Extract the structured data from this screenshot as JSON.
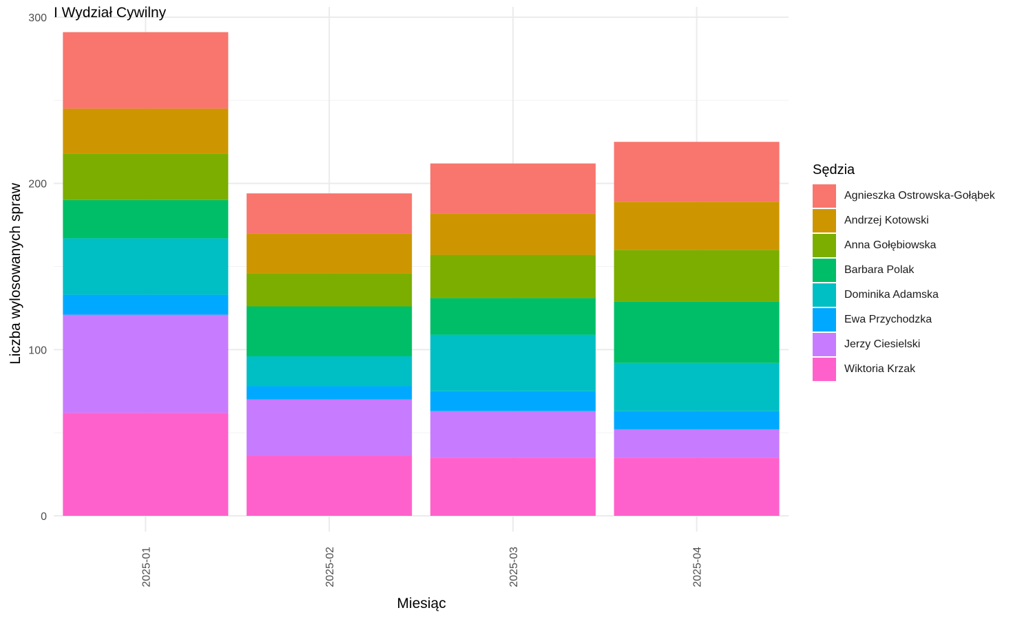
{
  "chart_data": {
    "type": "bar",
    "stacked": true,
    "title": "I Wydział Cywilny",
    "xlabel": "Miesiąc",
    "ylabel": "Liczba wylosowanych spraw",
    "ylim": [
      0,
      300
    ],
    "yticks": [
      0,
      100,
      200,
      300
    ],
    "grid": true,
    "legend_title": "Sędzia",
    "legend_position": "right",
    "categories": [
      "2025-01",
      "2025-02",
      "2025-03",
      "2025-04"
    ],
    "series": [
      {
        "name": "Wiktoria Krzak",
        "color": "#FF61CC",
        "values": [
          62,
          36,
          35,
          35
        ]
      },
      {
        "name": "Jerzy Ciesielski",
        "color": "#C77CFF",
        "values": [
          59,
          34,
          28,
          17
        ]
      },
      {
        "name": "Ewa Przychodzka",
        "color": "#00A9FF",
        "values": [
          12,
          8,
          12,
          11
        ]
      },
      {
        "name": "Dominika Adamska",
        "color": "#00BFC4",
        "values": [
          34,
          18,
          34,
          29
        ]
      },
      {
        "name": "Barbara Polak",
        "color": "#00BE67",
        "values": [
          23,
          30,
          22,
          37
        ]
      },
      {
        "name": "Anna Gołębiowska",
        "color": "#7CAE00",
        "values": [
          28,
          20,
          26,
          31
        ]
      },
      {
        "name": "Andrzej Kotowski",
        "color": "#CD9600",
        "values": [
          27,
          24,
          25,
          29
        ]
      },
      {
        "name": "Agnieszka Ostrowska-Gołąbek",
        "color": "#F8766D",
        "values": [
          46,
          24,
          30,
          36
        ]
      }
    ]
  }
}
